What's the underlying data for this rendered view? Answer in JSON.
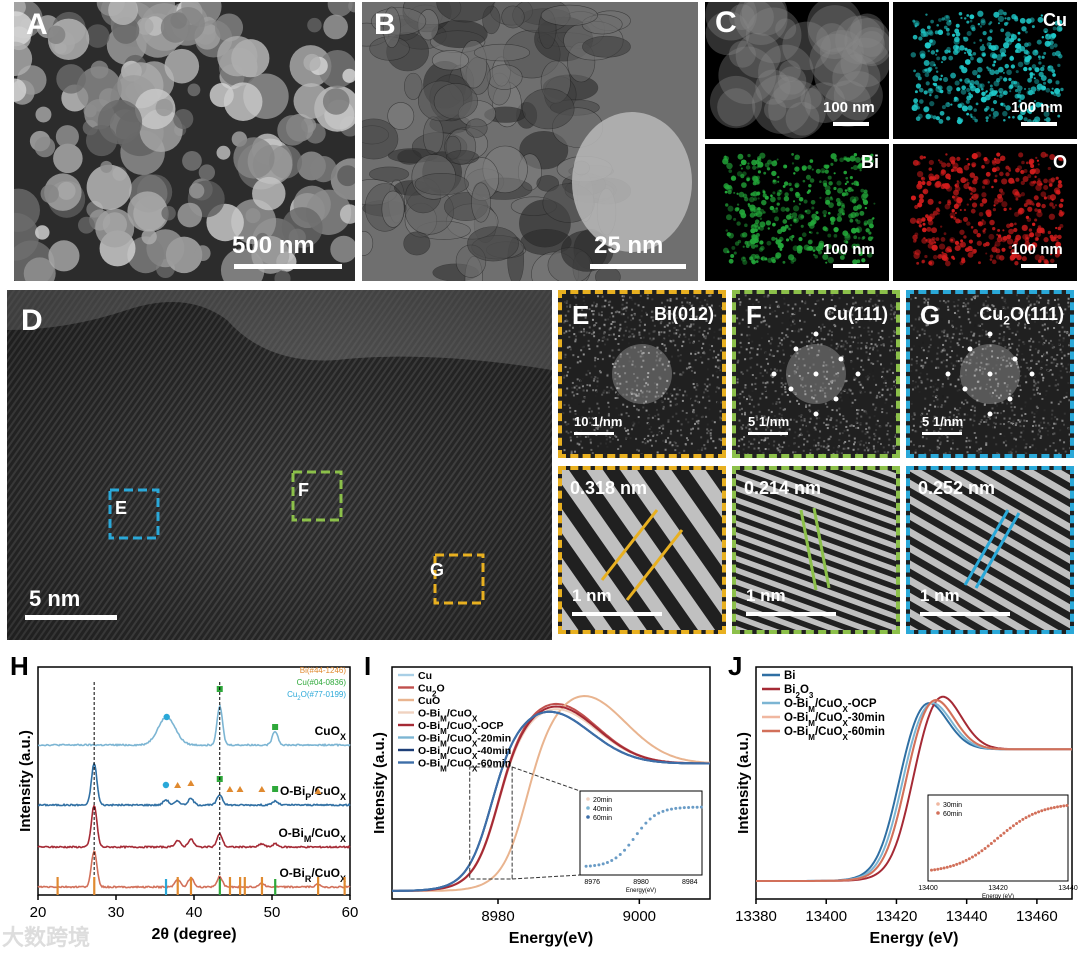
{
  "panels": {
    "A": {
      "label": "A",
      "scale": "500 nm"
    },
    "B": {
      "label": "B",
      "scale": "25 nm"
    },
    "C": {
      "label": "C",
      "tiles": [
        {
          "element": "",
          "scale": "100 nm",
          "color": "#8a8a8a"
        },
        {
          "element": "Cu",
          "scale": "100 nm",
          "color": "#1fc8c8"
        },
        {
          "element": "Bi",
          "scale": "100 nm",
          "color": "#23a83a"
        },
        {
          "element": "O",
          "scale": "100 nm",
          "color": "#d21c1c"
        }
      ]
    },
    "D": {
      "label": "D",
      "scale": "5 nm",
      "boxes": [
        "E",
        "F",
        "G"
      ]
    },
    "E": {
      "label": "E",
      "plane": "Bi(012)",
      "fft_scale": "10 1/nm",
      "d_spacing": "0.318 nm",
      "scale": "1 nm",
      "border": "#e8b020"
    },
    "F": {
      "label": "F",
      "plane": "Cu(111)",
      "fft_scale": "5 1/nm",
      "d_spacing": "0.214 nm",
      "scale": "1 nm",
      "border": "#8cc04a"
    },
    "G": {
      "label": "G",
      "plane_main": "Cu",
      "plane_sub": "2",
      "plane_rest": "O(111)",
      "fft_scale": "5 1/nm",
      "d_spacing": "0.252 nm",
      "scale": "1 nm",
      "border": "#2aa8d8"
    }
  },
  "chart_data": [
    {
      "type": "line",
      "label": "H",
      "xlabel": "2θ (degree)",
      "ylabel": "Intensity (a.u.)",
      "xlim": [
        20,
        60
      ],
      "xticks": [
        20,
        30,
        40,
        50,
        60
      ],
      "references": [
        {
          "name": "Bi(#44-1246)",
          "color": "#e08a30",
          "positions": [
            22.5,
            27.2,
            37.9,
            39.6,
            44.6,
            45.9,
            46.5,
            48.7,
            55.9,
            59.3
          ]
        },
        {
          "name": "Cu(#04-0836)",
          "color": "#2ea83a",
          "positions": [
            43.3,
            50.4
          ]
        },
        {
          "name": "Cu2O(#77-0199)",
          "color": "#2aa8d8",
          "positions": [
            36.4
          ]
        }
      ],
      "series": [
        {
          "name": "CuOX",
          "color": "#7cb5d3",
          "peaks": [
            [
              36.5,
              1.0
            ],
            [
              43.3,
              1.4
            ],
            [
              50.4,
              0.5
            ]
          ]
        },
        {
          "name": "O-BiP/CuOX",
          "color": "#2f6fa3",
          "peaks": [
            [
              27.2,
              1.6
            ],
            [
              36.4,
              0.2
            ],
            [
              37.9,
              0.15
            ],
            [
              39.6,
              0.25
            ],
            [
              43.3,
              0.4
            ],
            [
              50.4,
              0.15
            ]
          ]
        },
        {
          "name": "O-BiM/CuOX",
          "color": "#a52a35",
          "peaks": [
            [
              27.2,
              1.6
            ],
            [
              37.9,
              0.25
            ],
            [
              39.6,
              0.3
            ],
            [
              43.3,
              0.5
            ],
            [
              48.7,
              0.12
            ],
            [
              50.4,
              0.12
            ]
          ]
        },
        {
          "name": "O-BiR/CuOX",
          "color": "#d2705a",
          "peaks": [
            [
              27.2,
              1.4
            ],
            [
              37.9,
              0.3
            ],
            [
              39.6,
              0.35
            ],
            [
              43.3,
              0.4
            ],
            [
              48.7,
              0.15
            ],
            [
              55.9,
              0.1
            ]
          ]
        }
      ]
    },
    {
      "type": "line",
      "label": "I",
      "xlabel": "Energy(eV)",
      "ylabel": "Intensity (a.u.)",
      "xlim": [
        8965,
        9010
      ],
      "xticks": [
        8980,
        9000
      ],
      "legend": [
        "Cu",
        "Cu2O",
        "CuO",
        "O-BiM/CuOX",
        "O-BiM/CuOX-OCP",
        "O-BiM/CuOX-20min",
        "O-BiM/CuOX-40min",
        "O-BiM/CuOX-60min"
      ],
      "series": [
        {
          "name": "Cu",
          "color": "#a9cfe6",
          "edge": 8979,
          "peak": 1.0
        },
        {
          "name": "Cu2O",
          "color": "#c0504d",
          "edge": 8980,
          "peak": 1.15
        },
        {
          "name": "CuO",
          "color": "#e9b48f",
          "edge": 8984,
          "peak": 1.3
        },
        {
          "name": "O-BiM/CuOX",
          "color": "#f0d2c0",
          "edge": 8980,
          "peak": 1.05
        },
        {
          "name": "O-BiM/CuOX-OCP",
          "color": "#a52a35",
          "edge": 8980,
          "peak": 1.1
        },
        {
          "name": "O-BiM/CuOX-20min",
          "color": "#7cb5d3",
          "edge": 8979,
          "peak": 1.0
        },
        {
          "name": "O-BiM/CuOX-40min",
          "color": "#1e3f78",
          "edge": 8979,
          "peak": 1.0
        },
        {
          "name": "O-BiM/CuOX-60min",
          "color": "#3d6ea8",
          "edge": 8979,
          "peak": 1.0
        }
      ],
      "inset": {
        "xticks": [
          8976,
          8980,
          8984
        ],
        "xlabel": "Energy(eV)",
        "legend": [
          "20min",
          "40min",
          "60min"
        ]
      }
    },
    {
      "type": "line",
      "label": "J",
      "xlabel": "Energy (eV)",
      "ylabel": "Intensity (a.u.)",
      "xlim": [
        13380,
        13470
      ],
      "xticks": [
        13380,
        13400,
        13420,
        13440,
        13460
      ],
      "legend": [
        "Bi",
        "Bi2O3",
        "O-BiM/CuOX-OCP",
        "O-BiM/CuOX-30min",
        "O-BiM/CuOX-60min"
      ],
      "series": [
        {
          "name": "Bi",
          "color": "#2f6fa3",
          "edge": 13420,
          "peak": 1.0
        },
        {
          "name": "Bi2O3",
          "color": "#a52a35",
          "edge": 13424,
          "peak": 1.12
        },
        {
          "name": "O-BiM/CuOX-OCP",
          "color": "#7cb5d3",
          "edge": 13421,
          "peak": 1.0
        },
        {
          "name": "O-BiM/CuOX-30min",
          "color": "#f0b7a0",
          "edge": 13422,
          "peak": 1.05
        },
        {
          "name": "O-BiM/CuOX-60min",
          "color": "#d2705a",
          "edge": 13422,
          "peak": 1.06
        }
      ],
      "inset": {
        "xticks": [
          13400,
          13420,
          13440
        ],
        "xlabel": "Energy (eV)",
        "legend": [
          "30min",
          "60min"
        ]
      }
    }
  ],
  "watermark": "大数跨境"
}
